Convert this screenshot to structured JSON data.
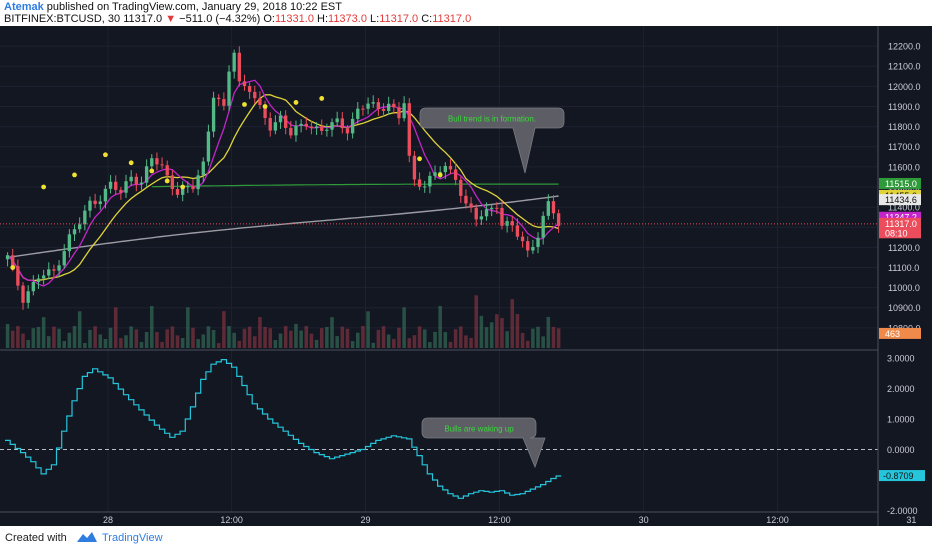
{
  "header": {
    "author": "Atemak",
    "published": " published on TradingView.com, January 29, 2018 10:22 EST",
    "symbol": "BITFINEX:BTCUSD, 30",
    "last": "11317.0",
    "arrow": "▼",
    "change": "−511.0 (−4.32%)",
    "o_label": "O:",
    "o_value": "11331.0",
    "h_label": "H:",
    "h_value": "11373.0",
    "l_label": "L:",
    "l_value": "11317.0",
    "c_label": "C:",
    "c_value": "11317.0"
  },
  "footer": {
    "created_with": "Created with",
    "brand": "TradingView"
  },
  "colors": {
    "background": "#131722",
    "bull": "#53b987",
    "bear": "#eb4d5c",
    "magenta_ma": "#c225c8",
    "yellow_ma": "#e0d33a",
    "green_ma": "#2f9a3a",
    "white_ma": "#9b9ba4",
    "oscillator": "#25c5dc",
    "dots": "#f0e130"
  },
  "chart_data": [
    {
      "type": "candlestick",
      "title": "BITFINEX:BTCUSD, 30",
      "ylim": [
        10700,
        12280
      ],
      "y_ticks": [
        "12200.0",
        "12100.0",
        "12000.0",
        "11900.0",
        "11800.0",
        "11700.0",
        "11600.0",
        "11500.0",
        "11400.0",
        "11300.0",
        "11200.0",
        "11100.0",
        "11000.0",
        "10900.0",
        "10800.0"
      ],
      "x_ticks": [
        "28",
        "12:00",
        "29",
        "12:00",
        "30",
        "12:00",
        "31"
      ],
      "price_path": [
        [
          0,
          11150
        ],
        [
          3,
          10950
        ],
        [
          6,
          11050
        ],
        [
          9,
          11080
        ],
        [
          12,
          11250
        ],
        [
          14,
          11320
        ],
        [
          16,
          11420
        ],
        [
          18,
          11450
        ],
        [
          20,
          11510
        ],
        [
          22,
          11470
        ],
        [
          24,
          11560
        ],
        [
          26,
          11520
        ],
        [
          28,
          11640
        ],
        [
          30,
          11600
        ],
        [
          33,
          11470
        ],
        [
          36,
          11500
        ],
        [
          38,
          11620
        ],
        [
          40,
          11960
        ],
        [
          42,
          11880
        ],
        [
          43,
          12080
        ],
        [
          44,
          12180
        ],
        [
          45,
          12020
        ],
        [
          47,
          11990
        ],
        [
          49,
          11880
        ],
        [
          51,
          11800
        ],
        [
          53,
          11850
        ],
        [
          55,
          11760
        ],
        [
          58,
          11820
        ],
        [
          61,
          11780
        ],
        [
          64,
          11820
        ],
        [
          66,
          11790
        ],
        [
          68,
          11880
        ],
        [
          70,
          11910
        ],
        [
          72,
          11890
        ],
        [
          74,
          11920
        ],
        [
          76,
          11840
        ],
        [
          77,
          11920
        ],
        [
          78,
          11640
        ],
        [
          79,
          11530
        ],
        [
          81,
          11520
        ],
        [
          83,
          11560
        ],
        [
          85,
          11600
        ],
        [
          87,
          11550
        ],
        [
          89,
          11410
        ],
        [
          91,
          11340
        ],
        [
          93,
          11380
        ],
        [
          95,
          11420
        ],
        [
          96,
          11310
        ],
        [
          98,
          11300
        ],
        [
          100,
          11230
        ],
        [
          101,
          11180
        ],
        [
          103,
          11260
        ],
        [
          105,
          11410
        ],
        [
          106,
          11380
        ],
        [
          107,
          11317
        ]
      ],
      "candles_up": 61,
      "candles_down": 47,
      "labels": [
        {
          "price": "11515.0",
          "color": "#2f9a3a"
        },
        {
          "price": "11455.6",
          "color": "#e0d33a"
        },
        {
          "price": "11434.6",
          "color": "#e8e8e8"
        },
        {
          "price": "11347.2",
          "color": "#c225c8"
        },
        {
          "price": "11317.0",
          "color": "#eb4d5c"
        },
        {
          "price": "08:10",
          "color": "#eb4d5c"
        },
        {
          "price": "463",
          "color": "#f08a4b"
        }
      ],
      "annotation": "Bull trend is in formation."
    },
    {
      "type": "line",
      "ylim": [
        -2.05,
        3.2
      ],
      "y_ticks": [
        "3.0000",
        "2.0000",
        "1.0000",
        "0.0000",
        "-0.8709",
        "-2.0000"
      ],
      "zero_line": 0,
      "last_value": "-0.8709",
      "osc_path": [
        [
          0,
          0.3
        ],
        [
          3,
          -0.1
        ],
        [
          5,
          -0.4
        ],
        [
          7,
          -0.8
        ],
        [
          9,
          -0.5
        ],
        [
          11,
          0.6
        ],
        [
          13,
          1.6
        ],
        [
          15,
          2.4
        ],
        [
          17,
          2.65
        ],
        [
          20,
          2.35
        ],
        [
          23,
          1.8
        ],
        [
          26,
          1.3
        ],
        [
          29,
          0.8
        ],
        [
          32,
          0.4
        ],
        [
          34,
          0.6
        ],
        [
          36,
          1.4
        ],
        [
          38,
          2.3
        ],
        [
          40,
          2.8
        ],
        [
          42,
          2.95
        ],
        [
          44,
          2.7
        ],
        [
          46,
          2.1
        ],
        [
          48,
          1.5
        ],
        [
          51,
          1.0
        ],
        [
          54,
          0.6
        ],
        [
          57,
          0.2
        ],
        [
          60,
          -0.1
        ],
        [
          63,
          -0.3
        ],
        [
          66,
          -0.15
        ],
        [
          69,
          0.0
        ],
        [
          72,
          0.3
        ],
        [
          75,
          0.45
        ],
        [
          78,
          0.35
        ],
        [
          80,
          -0.2
        ],
        [
          82,
          -0.8
        ],
        [
          84,
          -1.2
        ],
        [
          86,
          -1.45
        ],
        [
          88,
          -1.6
        ],
        [
          90,
          -1.45
        ],
        [
          92,
          -1.35
        ],
        [
          94,
          -1.4
        ],
        [
          96,
          -1.35
        ],
        [
          98,
          -1.5
        ],
        [
          100,
          -1.45
        ],
        [
          102,
          -1.3
        ],
        [
          104,
          -1.15
        ],
        [
          106,
          -0.95
        ],
        [
          107,
          -0.87
        ]
      ],
      "annotation": "Bulls are waking up"
    }
  ]
}
